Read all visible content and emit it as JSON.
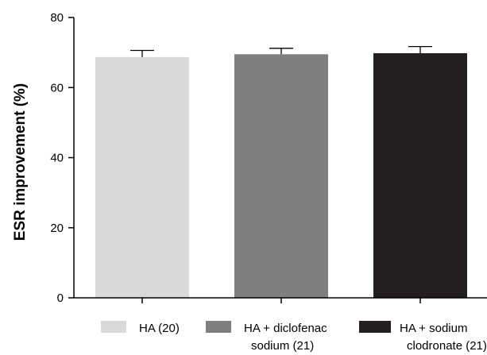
{
  "chart_data": {
    "type": "bar",
    "title": "",
    "xlabel": "",
    "ylabel": "ESR improvement (%)",
    "ylim": [
      0,
      80
    ],
    "yticks": [
      0,
      20,
      40,
      60,
      80
    ],
    "grid": false,
    "legend_position": "bottom",
    "categories": [
      "HA (20)",
      "HA + diclofenac sodium (21)",
      "HA + sodium clodronate (21)"
    ],
    "values": [
      68.7,
      69.5,
      69.8
    ],
    "errors": [
      1.9,
      1.7,
      1.9
    ],
    "colors": [
      "#d9d9d9",
      "#7f7f7f",
      "#231f20"
    ],
    "legend": [
      {
        "lines": [
          "HA (20)"
        ],
        "color": "#d9d9d9"
      },
      {
        "lines": [
          "HA + diclofenac",
          "sodium (21)"
        ],
        "color": "#7f7f7f"
      },
      {
        "lines": [
          "HA + sodium",
          "clodronate (21)"
        ],
        "color": "#231f20"
      }
    ]
  }
}
